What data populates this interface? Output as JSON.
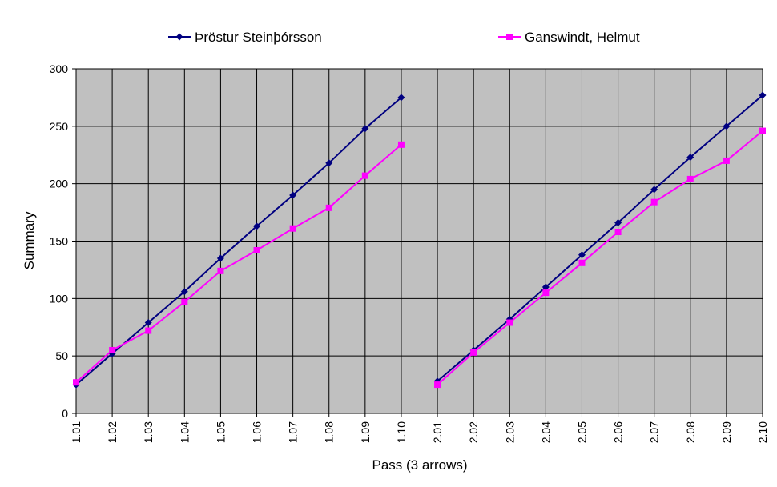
{
  "chart_data": {
    "type": "line",
    "xlabel": "Pass (3 arrows)",
    "ylabel": "Summary",
    "ylim": [
      0,
      300
    ],
    "yticks": [
      0,
      50,
      100,
      150,
      200,
      250,
      300
    ],
    "categories": [
      "1.01",
      "1.02",
      "1.03",
      "1.04",
      "1.05",
      "1.06",
      "1.07",
      "1.08",
      "1.09",
      "1.10",
      "2.01",
      "2.02",
      "2.03",
      "2.04",
      "2.05",
      "2.06",
      "2.07",
      "2.08",
      "2.09",
      "2.10"
    ],
    "grid": true,
    "legend_position": "top",
    "plot_background": "#c0c0c0",
    "series": [
      {
        "name": "Þröstur Steinþórsson",
        "color": "#000080",
        "marker": "diamond",
        "values": [
          25,
          52,
          79,
          106,
          135,
          163,
          190,
          218,
          248,
          275,
          28,
          55,
          82,
          110,
          138,
          166,
          195,
          223,
          250,
          277
        ]
      },
      {
        "name": "Ganswindt, Helmut",
        "color": "#ff00ff",
        "marker": "square",
        "values": [
          27,
          55,
          72,
          97,
          124,
          142,
          161,
          179,
          207,
          234,
          25,
          53,
          79,
          105,
          131,
          158,
          184,
          204,
          220,
          246
        ]
      }
    ]
  }
}
